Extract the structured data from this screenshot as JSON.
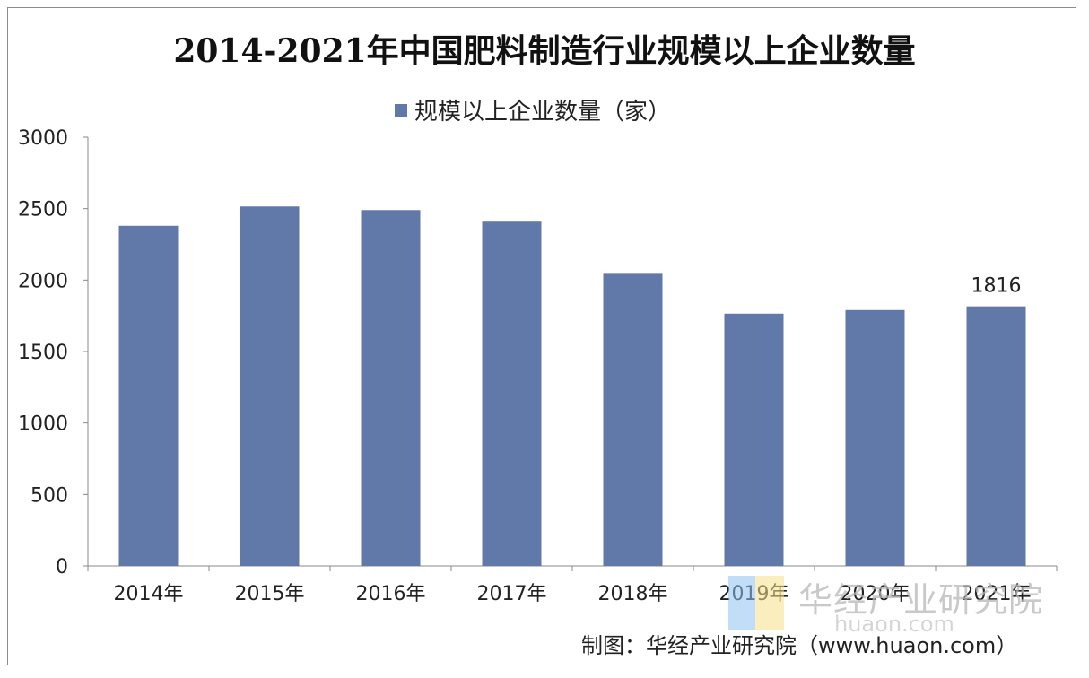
{
  "chart_data": {
    "type": "bar",
    "title": "2014-2021年中国肥料制造行业规模以上企业数量",
    "categories": [
      "2014年",
      "2015年",
      "2016年",
      "2017年",
      "2018年",
      "2019年",
      "2020年",
      "2021年"
    ],
    "series": [
      {
        "name": "规模以上企业数量（家）",
        "values": [
          2380,
          2515,
          2490,
          2415,
          2050,
          1765,
          1790,
          1816
        ],
        "color": "#6079a8"
      }
    ],
    "data_labels": {
      "2021年": "1816"
    },
    "ylim": [
      0,
      3000
    ],
    "yticks": [
      "0",
      "500",
      "1000",
      "1500",
      "2000",
      "2500",
      "3000"
    ],
    "grid": false,
    "legend_position": "top-center"
  },
  "watermark": {
    "name": "华经产业研究院",
    "url": "huaon.com"
  },
  "source_note": "制图：华经产业研究院（www.huaon.com）"
}
